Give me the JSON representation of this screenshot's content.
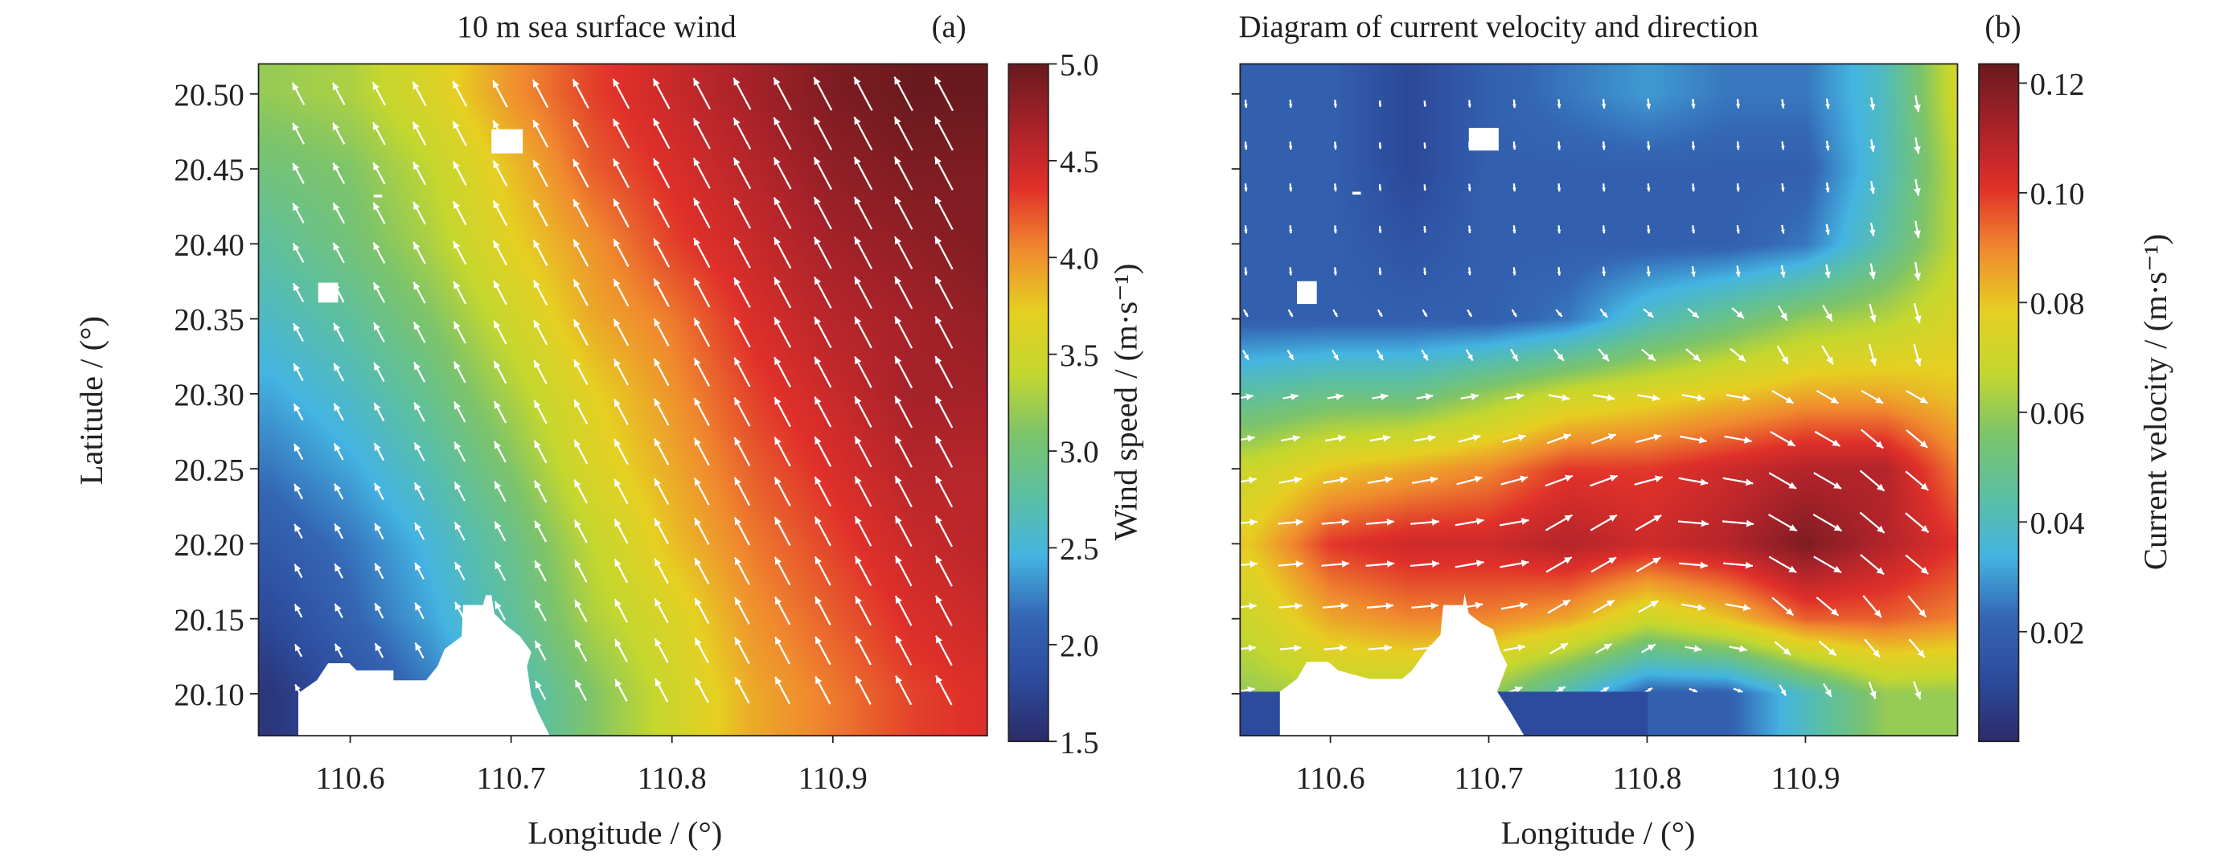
{
  "chart_data": [
    {
      "type": "heatmap",
      "panel": "(a)",
      "title": "10 m sea surface wind",
      "xlabel": "Longitude / (°)",
      "ylabel": "Latitude / (°)",
      "xlim": [
        110.543,
        110.996
      ],
      "ylim": [
        20.072,
        20.52
      ],
      "xticks": [
        "110.6",
        "110.7",
        "110.8",
        "110.9"
      ],
      "xtick_values": [
        110.6,
        110.7,
        110.8,
        110.9
      ],
      "yticks": [
        "20.50",
        "20.45",
        "20.40",
        "20.35",
        "20.30",
        "20.25",
        "20.20",
        "20.15",
        "20.10"
      ],
      "ytick_values": [
        20.5,
        20.45,
        20.4,
        20.35,
        20.3,
        20.25,
        20.2,
        20.15,
        20.1
      ],
      "colorbar": {
        "label": "Wind speed / (m·s⁻¹)",
        "range": [
          1.5,
          5.0
        ],
        "ticks": [
          "5.0",
          "4.5",
          "4.0",
          "3.5",
          "3.0",
          "2.5",
          "2.0",
          "1.5"
        ],
        "tick_values": [
          5.0,
          4.5,
          4.0,
          3.5,
          3.0,
          2.5,
          2.0,
          1.5
        ]
      },
      "grid_lon": [
        110.55,
        110.6,
        110.65,
        110.7,
        110.75,
        110.8,
        110.85,
        110.9,
        110.95,
        111.0
      ],
      "grid_lat": [
        20.5,
        20.45,
        20.4,
        20.35,
        20.3,
        20.25,
        20.2,
        20.15,
        20.1
      ],
      "values": [
        [
          3.2,
          3.3,
          3.6,
          4.0,
          4.3,
          4.5,
          4.7,
          4.9,
          5.0,
          5.0
        ],
        [
          3.0,
          3.1,
          3.4,
          3.8,
          4.2,
          4.4,
          4.6,
          4.8,
          4.9,
          4.9
        ],
        [
          2.8,
          3.0,
          3.3,
          3.7,
          4.0,
          4.3,
          4.5,
          4.7,
          4.8,
          4.9
        ],
        [
          2.6,
          2.8,
          3.1,
          3.5,
          3.9,
          4.1,
          4.4,
          4.6,
          4.7,
          4.8
        ],
        [
          2.4,
          2.6,
          2.9,
          3.3,
          3.7,
          4.0,
          4.3,
          4.5,
          4.7,
          4.7
        ],
        [
          2.2,
          2.4,
          2.7,
          3.1,
          3.6,
          3.9,
          4.2,
          4.4,
          4.6,
          4.6
        ],
        [
          2.0,
          2.2,
          2.5,
          2.9,
          3.4,
          3.8,
          4.1,
          4.3,
          4.5,
          4.6
        ],
        [
          1.8,
          2.1,
          2.4,
          2.8,
          3.3,
          3.6,
          4.0,
          4.2,
          4.4,
          4.5
        ],
        [
          1.6,
          1.9,
          2.2,
          2.6,
          3.1,
          3.5,
          3.9,
          4.1,
          4.3,
          4.4
        ]
      ],
      "vector_direction_deg": 332
    },
    {
      "type": "heatmap",
      "panel": "(b)",
      "title": "Diagram of current velocity and direction",
      "xlabel": "Longitude / (°)",
      "xlim": [
        110.543,
        110.996
      ],
      "ylim": [
        20.072,
        20.52
      ],
      "xticks": [
        "110.6",
        "110.7",
        "110.8",
        "110.9"
      ],
      "xtick_values": [
        110.6,
        110.7,
        110.8,
        110.9
      ],
      "ytick_values": [
        20.5,
        20.45,
        20.4,
        20.35,
        20.3,
        20.25,
        20.2,
        20.15,
        20.1
      ],
      "colorbar": {
        "label": "Current velocity / (m·s⁻¹)",
        "range": [
          0.0,
          0.1235
        ],
        "ticks": [
          "0.12",
          "0.10",
          "0.08",
          "0.06",
          "0.04",
          "0.02"
        ],
        "tick_values": [
          0.12,
          0.1,
          0.08,
          0.06,
          0.04,
          0.02
        ]
      },
      "grid_lon": [
        110.55,
        110.6,
        110.65,
        110.7,
        110.75,
        110.8,
        110.85,
        110.9,
        110.95,
        111.0
      ],
      "grid_lat": [
        20.5,
        20.45,
        20.4,
        20.35,
        20.3,
        20.25,
        20.2,
        20.15,
        20.1
      ],
      "values": [
        [
          0.02,
          0.02,
          0.01,
          0.02,
          0.025,
          0.03,
          0.025,
          0.025,
          0.04,
          0.075
        ],
        [
          0.02,
          0.02,
          0.01,
          0.02,
          0.02,
          0.02,
          0.02,
          0.02,
          0.04,
          0.07
        ],
        [
          0.02,
          0.02,
          0.015,
          0.02,
          0.02,
          0.02,
          0.02,
          0.025,
          0.045,
          0.07
        ],
        [
          0.02,
          0.02,
          0.02,
          0.02,
          0.025,
          0.04,
          0.05,
          0.06,
          0.065,
          0.075
        ],
        [
          0.045,
          0.05,
          0.05,
          0.06,
          0.07,
          0.075,
          0.08,
          0.085,
          0.085,
          0.08
        ],
        [
          0.07,
          0.08,
          0.085,
          0.09,
          0.1,
          0.1,
          0.105,
          0.11,
          0.11,
          0.09
        ],
        [
          0.08,
          0.1,
          0.105,
          0.105,
          0.11,
          0.105,
          0.11,
          0.12,
          0.11,
          0.1
        ],
        [
          0.07,
          0.085,
          0.09,
          0.09,
          0.085,
          0.07,
          0.08,
          0.095,
          0.095,
          0.09
        ],
        [
          0.06,
          0.065,
          0.065,
          0.06,
          0.04,
          0.02,
          0.02,
          0.04,
          0.06,
          0.06
        ]
      ],
      "vector_direction_deg": [
        [
          175,
          175,
          175,
          175,
          175,
          175,
          175,
          172,
          170,
          170
        ],
        [
          175,
          175,
          175,
          175,
          175,
          175,
          175,
          172,
          170,
          170
        ],
        [
          175,
          175,
          175,
          175,
          175,
          175,
          172,
          170,
          170,
          170
        ],
        [
          150,
          150,
          150,
          150,
          140,
          130,
          130,
          150,
          165,
          170
        ],
        [
          80,
          80,
          80,
          80,
          100,
          100,
          100,
          120,
          120,
          125
        ],
        [
          80,
          80,
          80,
          75,
          70,
          75,
          100,
          120,
          130,
          135
        ],
        [
          85,
          85,
          85,
          80,
          60,
          60,
          95,
          120,
          130,
          135
        ],
        [
          85,
          85,
          85,
          80,
          60,
          60,
          100,
          130,
          140,
          140
        ],
        [
          80,
          80,
          80,
          70,
          60,
          60,
          110,
          150,
          160,
          160
        ]
      ]
    }
  ],
  "colors": {
    "vector": "#ffffff",
    "land": "#ffffff",
    "colormap": [
      "#2b2c6a",
      "#2d4b9c",
      "#3466b4",
      "#44b4e2",
      "#5cbfa2",
      "#7dc46a",
      "#c5d72e",
      "#e6cf22",
      "#f08a2e",
      "#e0302a",
      "#a8222a",
      "#6a1a1e"
    ]
  }
}
